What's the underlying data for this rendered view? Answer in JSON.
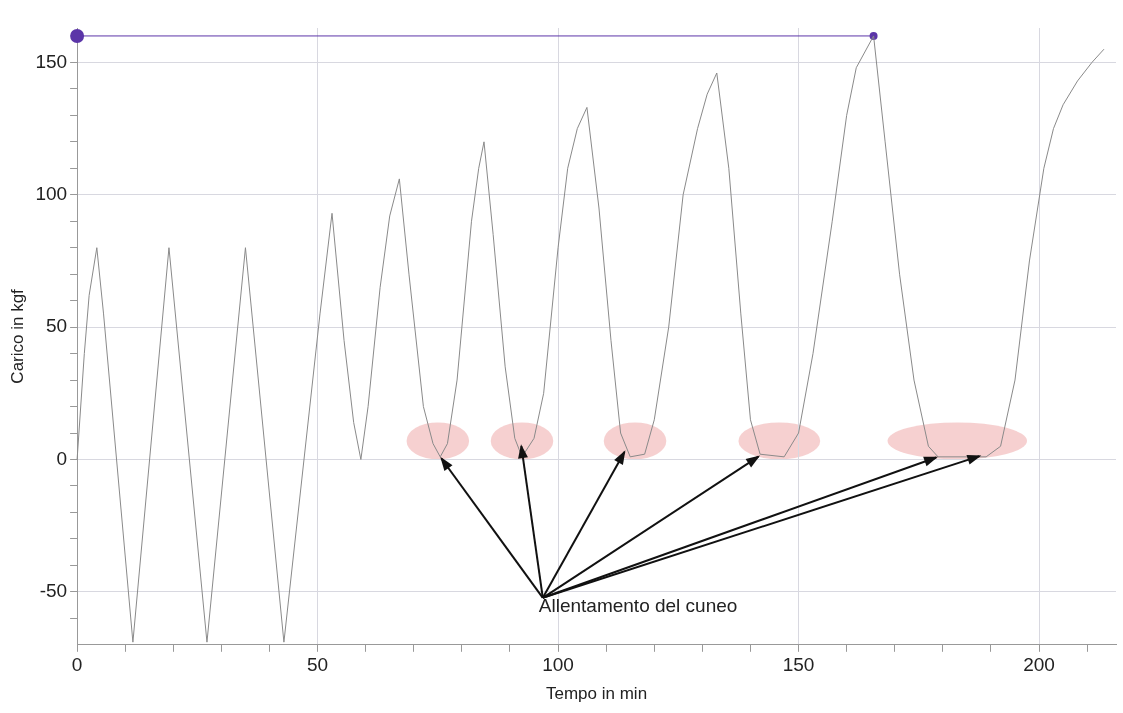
{
  "chart_data": {
    "type": "line",
    "xlabel": "Tempo in min",
    "ylabel": "Carico in kgf",
    "series": [
      {
        "color": "#8a8a8a",
        "marker": "none",
        "x": [
          0,
          1.5,
          2.5,
          4.1,
          5.5,
          11.6,
          19.1,
          27,
          35,
          43,
          50.5,
          53,
          55.5,
          57.5,
          59,
          60.5,
          63,
          65,
          67,
          69,
          72,
          74,
          75.5,
          77,
          79,
          82,
          83.5,
          84.6,
          86.5,
          89,
          91,
          92.5,
          95,
          97,
          100,
          102,
          104,
          106,
          108.5,
          111,
          113,
          115,
          118,
          120,
          123,
          126,
          129,
          131,
          133,
          135.5,
          138,
          140,
          142,
          147,
          150,
          153,
          157,
          160,
          162,
          165.6,
          168,
          171,
          174,
          177,
          179,
          189,
          192,
          195,
          198,
          201,
          203,
          205,
          208,
          211,
          213.5
        ],
        "values": [
          0,
          40,
          62,
          80,
          55,
          -69,
          80,
          -69,
          80,
          -69,
          55,
          93,
          45,
          14,
          0,
          20,
          65,
          92,
          106,
          70,
          20,
          6,
          1,
          6,
          30,
          90,
          110,
          120,
          85,
          35,
          8,
          1,
          8,
          25,
          80,
          110,
          125,
          133,
          95,
          45,
          10,
          1,
          2,
          15,
          50,
          100,
          125,
          138,
          146,
          110,
          55,
          15,
          2,
          1,
          10,
          40,
          90,
          130,
          148,
          160,
          120,
          70,
          30,
          5,
          1,
          1,
          5,
          30,
          75,
          110,
          125,
          134,
          143,
          150,
          155
        ]
      },
      {
        "color": "#5b35a8",
        "marker": "circle",
        "x": [
          0,
          165.6
        ],
        "values": [
          160,
          160
        ]
      }
    ],
    "xlim": [
      0,
      216
    ],
    "ylim": [
      -70,
      163
    ],
    "xticks": [
      0,
      {
        "value": 10,
        "label": null
      },
      {
        "value": 20,
        "label": null
      },
      {
        "value": 30,
        "label": null
      },
      {
        "value": 40,
        "label": null
      },
      50,
      {
        "value": 60,
        "label": null
      },
      {
        "value": 70,
        "label": null
      },
      {
        "value": 80,
        "label": null
      },
      {
        "value": 90,
        "label": null
      },
      100,
      {
        "value": 110,
        "label": null
      },
      {
        "value": 120,
        "label": null
      },
      {
        "value": 130,
        "label": null
      },
      {
        "value": 140,
        "label": null
      },
      150,
      {
        "value": 160,
        "label": null
      },
      {
        "value": 170,
        "label": null
      },
      {
        "value": 180,
        "label": null
      },
      {
        "value": 190,
        "label": null
      },
      200,
      {
        "value": 210,
        "label": null
      }
    ],
    "yticks": [
      {
        "value": -60,
        "label": null
      },
      -50,
      {
        "value": -40,
        "label": null
      },
      {
        "value": -30,
        "label": null
      },
      {
        "value": -20,
        "label": null
      },
      {
        "value": -10,
        "label": null
      },
      0,
      {
        "value": 10,
        "label": null
      },
      {
        "value": 20,
        "label": null
      },
      {
        "value": 30,
        "label": null
      },
      {
        "value": 40,
        "label": null
      },
      50,
      {
        "value": 60,
        "label": null
      },
      {
        "value": 70,
        "label": null
      },
      {
        "value": 80,
        "label": null
      },
      {
        "value": 90,
        "label": null
      },
      100,
      {
        "value": 110,
        "label": null
      },
      {
        "value": 120,
        "label": null
      },
      {
        "value": 130,
        "label": null
      },
      {
        "value": 140,
        "label": null
      },
      150
    ],
    "grid": true,
    "legend": false,
    "annotations": [
      {
        "text": "Allentamento del cuneo",
        "x": 75.5,
        "y": 1
      }
    ]
  }
}
